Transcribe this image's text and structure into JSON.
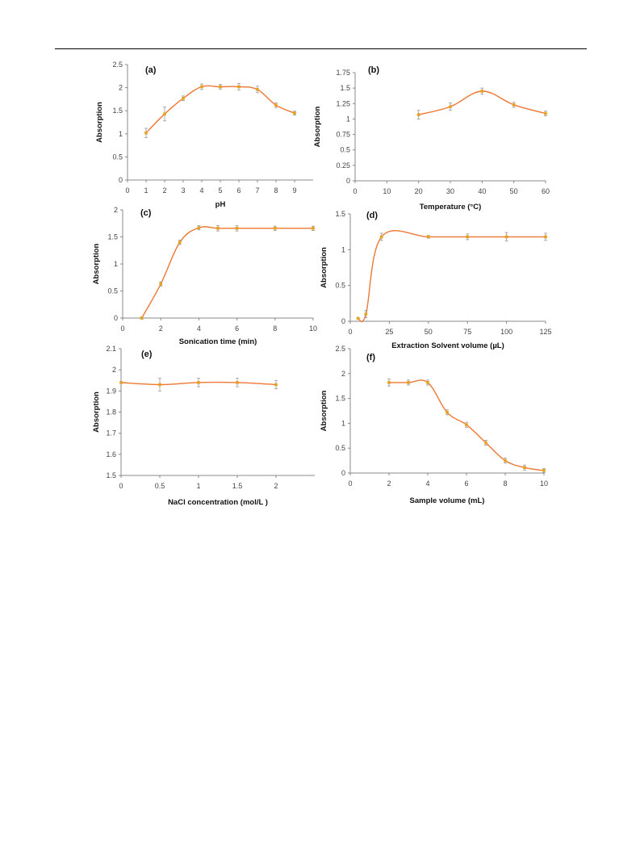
{
  "accent_color": "#ee7733",
  "marker_color": "#e8a020",
  "error_bar_color": "#999999",
  "chart_data": [
    {
      "type": "line",
      "title": "(a)",
      "xlabel": "pH",
      "ylabel": "Absorption",
      "xlim": [
        0,
        10
      ],
      "ylim": [
        0,
        2.5
      ],
      "xticks": [
        0,
        1,
        2,
        3,
        4,
        5,
        6,
        7,
        8,
        9
      ],
      "yticks": [
        0,
        0.5,
        1,
        1.5,
        2,
        2.5
      ],
      "ytick_labels": [
        "0",
        "0.5",
        "1",
        "1.5",
        "2",
        "2.5"
      ],
      "grid": false,
      "x": [
        1,
        2,
        3,
        4,
        5,
        6,
        7,
        8,
        9
      ],
      "y": [
        1.02,
        1.43,
        1.77,
        2.02,
        2.02,
        2.02,
        1.96,
        1.62,
        1.45
      ],
      "yerr": [
        0.1,
        0.15,
        0.05,
        0.06,
        0.05,
        0.07,
        0.07,
        0.05,
        0.04
      ]
    },
    {
      "type": "line",
      "title": "(b)",
      "xlabel": "Temperature (°C)",
      "ylabel": "Absorption",
      "xlim": [
        0,
        60
      ],
      "ylim": [
        0,
        1.75
      ],
      "xticks": [
        0,
        10,
        20,
        30,
        40,
        50,
        60
      ],
      "yticks": [
        0,
        0.25,
        0.5,
        0.75,
        1,
        1.25,
        1.5,
        1.75
      ],
      "ytick_labels": [
        "0",
        "0.25",
        "0.5",
        "0.75",
        "1",
        "1.25",
        "1.5",
        "1.75"
      ],
      "grid": false,
      "x": [
        20,
        30,
        40,
        50,
        60
      ],
      "y": [
        1.07,
        1.2,
        1.45,
        1.23,
        1.09
      ],
      "yerr": [
        0.07,
        0.06,
        0.05,
        0.04,
        0.04
      ]
    },
    {
      "type": "line",
      "title": "(c)",
      "xlabel": "Sonication time (min)",
      "ylabel": "Absorption",
      "xlim": [
        0,
        10
      ],
      "ylim": [
        0,
        2
      ],
      "xticks": [
        0,
        2,
        4,
        6,
        8,
        10
      ],
      "yticks": [
        0,
        0.5,
        1,
        1.5,
        2
      ],
      "ytick_labels": [
        "0",
        "0.5",
        "1",
        "1.5",
        "2"
      ],
      "grid": false,
      "x": [
        1,
        2,
        3,
        4,
        5,
        6,
        8,
        10
      ],
      "y": [
        0,
        0.63,
        1.4,
        1.67,
        1.66,
        1.66,
        1.66,
        1.66
      ],
      "yerr": [
        0.02,
        0.04,
        0.04,
        0.04,
        0.05,
        0.05,
        0.04,
        0.04
      ]
    },
    {
      "type": "line",
      "title": "(d)",
      "xlabel": "Extraction Solvent volume (µL)",
      "ylabel": "Absorption",
      "xlim": [
        0,
        125
      ],
      "ylim": [
        0,
        1.5
      ],
      "xticks": [
        0,
        25,
        50,
        75,
        100,
        125
      ],
      "yticks": [
        0,
        0.5,
        1,
        1.5
      ],
      "ytick_labels": [
        "0",
        "0.5",
        "1",
        "1.5"
      ],
      "grid": false,
      "x": [
        5,
        10,
        20,
        50,
        75,
        100,
        125
      ],
      "y": [
        0.04,
        0.1,
        1.18,
        1.18,
        1.18,
        1.18,
        1.18
      ],
      "yerr": [
        0.01,
        0.05,
        0.05,
        0.02,
        0.04,
        0.06,
        0.05
      ]
    },
    {
      "type": "line",
      "title": "(e)",
      "xlabel": "NaCl concentration (mol/L )",
      "ylabel": "Absorption",
      "xlim": [
        0,
        2.5
      ],
      "ylim": [
        1.5,
        2.1
      ],
      "xticks": [
        0,
        0.5,
        1,
        1.5,
        2
      ],
      "yticks": [
        1.5,
        1.6,
        1.7,
        1.8,
        1.9,
        2,
        2.1
      ],
      "ytick_labels": [
        "1.5",
        "1.6",
        "1.7",
        "1.8",
        "1.9",
        "2",
        "2.1"
      ],
      "grid": false,
      "x": [
        0,
        0.5,
        1,
        1.5,
        2
      ],
      "y": [
        1.94,
        1.93,
        1.94,
        1.94,
        1.93
      ],
      "yerr": [
        0.0,
        0.03,
        0.02,
        0.02,
        0.02
      ]
    },
    {
      "type": "line",
      "title": "(f)",
      "xlabel": "Sample volume (mL)",
      "ylabel": "Absorption",
      "xlim": [
        0,
        10
      ],
      "ylim": [
        0,
        2.5
      ],
      "xticks": [
        0,
        2,
        4,
        6,
        8,
        10
      ],
      "yticks": [
        0,
        0.5,
        1,
        1.5,
        2,
        2.5
      ],
      "ytick_labels": [
        "0",
        "0.5",
        "1",
        "1.5",
        "2",
        "2.5"
      ],
      "grid": false,
      "x": [
        2,
        3,
        4,
        5,
        6,
        7,
        8,
        9,
        10
      ],
      "y": [
        1.82,
        1.82,
        1.82,
        1.22,
        0.97,
        0.61,
        0.25,
        0.11,
        0.05
      ],
      "yerr": [
        0.07,
        0.05,
        0.05,
        0.05,
        0.05,
        0.05,
        0.05,
        0.05,
        0.04
      ]
    }
  ]
}
